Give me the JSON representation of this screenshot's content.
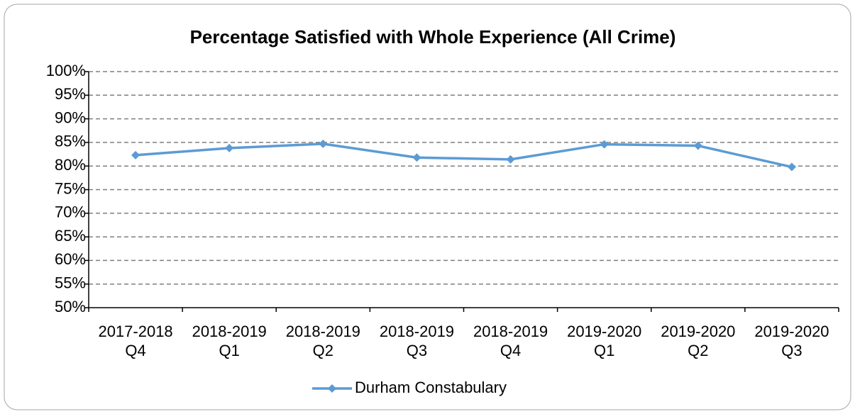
{
  "chart_data": {
    "type": "line",
    "title": "Percentage Satisfied with Whole Experience (All Crime)",
    "categories": [
      "2017-2018 Q4",
      "2018-2019 Q1",
      "2018-2019 Q2",
      "2018-2019 Q3",
      "2018-2019 Q4",
      "2019-2020 Q1",
      "2019-2020 Q2",
      "2019-2020 Q3"
    ],
    "series": [
      {
        "name": "Durham Constabulary",
        "color": "#5b9bd5",
        "values": [
          82.3,
          83.8,
          84.7,
          81.8,
          81.4,
          84.6,
          84.3,
          79.8
        ]
      }
    ],
    "ylim": [
      50,
      100
    ],
    "yticks": [
      {
        "value": 50,
        "label": "50%"
      },
      {
        "value": 55,
        "label": "55%"
      },
      {
        "value": 60,
        "label": "60%"
      },
      {
        "value": 65,
        "label": "65%"
      },
      {
        "value": 70,
        "label": "70%"
      },
      {
        "value": 75,
        "label": "75%"
      },
      {
        "value": 80,
        "label": "80%"
      },
      {
        "value": 85,
        "label": "85%"
      },
      {
        "value": 90,
        "label": "90%"
      },
      {
        "value": 95,
        "label": "95%"
      },
      {
        "value": 100,
        "label": "100%"
      }
    ],
    "grid": true,
    "legend": "bottom"
  }
}
